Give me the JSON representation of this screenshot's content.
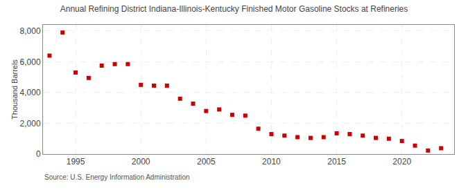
{
  "chart_data": {
    "type": "scatter",
    "title": "Annual Refining District Indiana-Illinois-Kentucky Finished Motor Gasoline Stocks at Refineries",
    "ylabel": "Thousand Barrels",
    "annotations": [
      "Source: U.S. Energy Information Administration"
    ],
    "x": [
      1993,
      1994,
      1995,
      1996,
      1997,
      1998,
      1999,
      2000,
      2001,
      2002,
      2003,
      2004,
      2005,
      2006,
      2007,
      2008,
      2009,
      2010,
      2011,
      2012,
      2013,
      2014,
      2015,
      2016,
      2017,
      2018,
      2019,
      2020,
      2021,
      2022,
      2023
    ],
    "values": [
      6400,
      7900,
      5300,
      4950,
      5750,
      5850,
      5850,
      4500,
      4450,
      4450,
      3600,
      3280,
      2800,
      2900,
      2550,
      2500,
      1650,
      1300,
      1200,
      1100,
      1050,
      1100,
      1350,
      1300,
      1200,
      1050,
      1000,
      850,
      550,
      230,
      380
    ],
    "color": "#cc0000",
    "marker": "square",
    "xlim": [
      1992.5,
      2024
    ],
    "xticks": [
      1995,
      2000,
      2005,
      2010,
      2015,
      2020
    ],
    "ylim": [
      0,
      8400
    ],
    "yticks": [
      0,
      {
        "value": 2000,
        "label": "2,000"
      },
      {
        "value": 4000,
        "label": "4,000"
      },
      {
        "value": 6000,
        "label": "6,000"
      },
      {
        "value": 8000,
        "label": "8,000"
      }
    ],
    "grid": true
  }
}
